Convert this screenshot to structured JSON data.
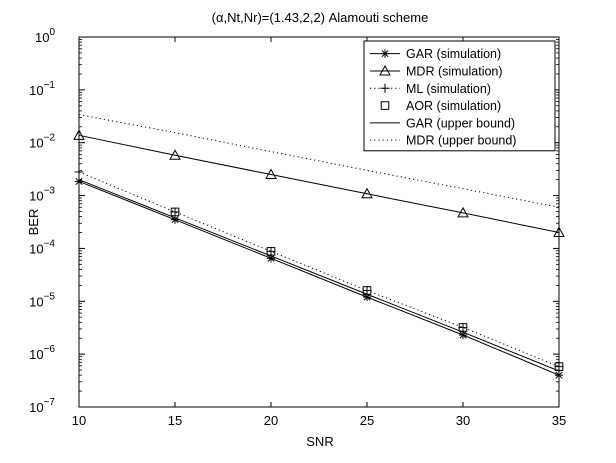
{
  "chart_data": {
    "type": "line",
    "title": "(α,Nt,Nr)=(1.43,2,2) Alamouti scheme",
    "xlabel": "SNR",
    "ylabel": "BER",
    "xlim": [
      10,
      35
    ],
    "ylim": [
      1e-07,
      1
    ],
    "yscale": "log",
    "grid": false,
    "legend_position": "top-right",
    "x_ticks": [
      10,
      15,
      20,
      25,
      30,
      35
    ],
    "y_ticks": [
      {
        "value": 1,
        "base": "10",
        "exp": "0"
      },
      {
        "value": 0.1,
        "base": "10",
        "exp": "−1"
      },
      {
        "value": 0.01,
        "base": "10",
        "exp": "−2"
      },
      {
        "value": 0.001,
        "base": "10",
        "exp": "−3"
      },
      {
        "value": 0.0001,
        "base": "10",
        "exp": "−4"
      },
      {
        "value": 1e-05,
        "base": "10",
        "exp": "−5"
      },
      {
        "value": 1e-06,
        "base": "10",
        "exp": "−6"
      },
      {
        "value": 1e-07,
        "base": "10",
        "exp": "−7"
      }
    ],
    "series": [
      {
        "name": "GAR (simulation)",
        "line": "solid",
        "marker": "star",
        "x": [
          10,
          15,
          20,
          25,
          30,
          35
        ],
        "y": [
          0.00185,
          0.00035,
          6.5e-05,
          1.2e-05,
          2.3e-06,
          4e-07
        ]
      },
      {
        "name": "MDR (simulation)",
        "line": "solid",
        "marker": "triangle",
        "x": [
          10,
          15,
          20,
          25,
          30,
          35
        ],
        "y": [
          0.0138,
          0.0058,
          0.0025,
          0.00108,
          0.00047,
          0.0002
        ]
      },
      {
        "name": "ML (simulation)",
        "line": "dotted",
        "marker": "plus",
        "x": [
          10,
          15,
          20,
          25,
          30,
          35
        ],
        "y": [
          0.0028,
          0.00049,
          8.8e-05,
          1.6e-05,
          3.2e-06,
          5.8e-07
        ]
      },
      {
        "name": "AOR (simulation)",
        "line": "none",
        "marker": "square",
        "x": [
          15,
          20,
          25,
          30,
          35
        ],
        "y": [
          0.00049,
          8.8e-05,
          1.6e-05,
          3.2e-06,
          5.8e-07
        ]
      },
      {
        "name": "GAR (upper bound)",
        "line": "solid",
        "marker": "none",
        "x": [
          10,
          15,
          20,
          25,
          30,
          35
        ],
        "y": [
          0.002,
          0.00038,
          7.2e-05,
          1.36e-05,
          2.6e-06,
          4.8e-07
        ]
      },
      {
        "name": "MDR (upper bound)",
        "line": "dotted",
        "marker": "none",
        "x": [
          10,
          15,
          20,
          25,
          30,
          35
        ],
        "y": [
          0.034,
          0.0155,
          0.0068,
          0.003,
          0.00135,
          0.0006
        ]
      }
    ]
  }
}
